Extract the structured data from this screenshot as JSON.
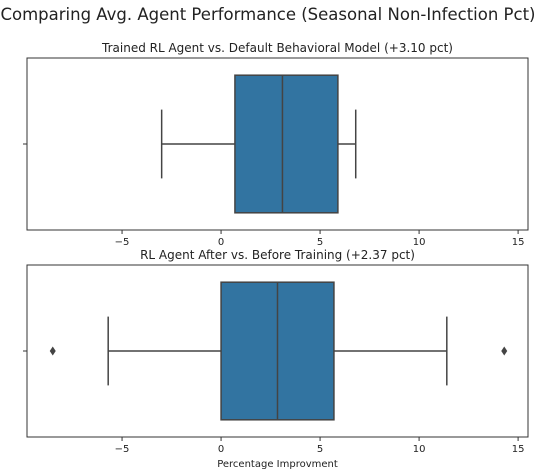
{
  "figure_title": "Comparing Avg. Agent Performance (Seasonal Non-Infection Pct)",
  "colors": {
    "box_fill": "#3274a1",
    "line": "#444444",
    "frame": "#333333"
  },
  "chart_data": [
    {
      "type": "box",
      "title": "Trained RL Agent vs. Default Behavioral Model (+3.10 pct)",
      "xlabel": "",
      "xlim": [
        -9.8,
        15.5
      ],
      "xticks": [
        -5,
        0,
        5,
        10,
        15
      ],
      "xtick_labels": [
        "−5",
        "0",
        "5",
        "10",
        "15"
      ],
      "box": {
        "whisker_low": -3.0,
        "q1": 0.7,
        "median": 3.1,
        "q3": 5.9,
        "whisker_high": 6.8,
        "outliers": []
      }
    },
    {
      "type": "box",
      "title": "RL Agent After vs. Before Training (+2.37 pct)",
      "xlabel": "Percentage Improvment",
      "xlim": [
        -9.8,
        15.5
      ],
      "xticks": [
        -5,
        0,
        5,
        10,
        15
      ],
      "xtick_labels": [
        "−5",
        "0",
        "5",
        "10",
        "15"
      ],
      "box": {
        "whisker_low": -5.7,
        "q1": 0.0,
        "median": 2.85,
        "q3": 5.7,
        "whisker_high": 11.4,
        "outliers": [
          -8.5,
          14.3
        ]
      }
    }
  ]
}
